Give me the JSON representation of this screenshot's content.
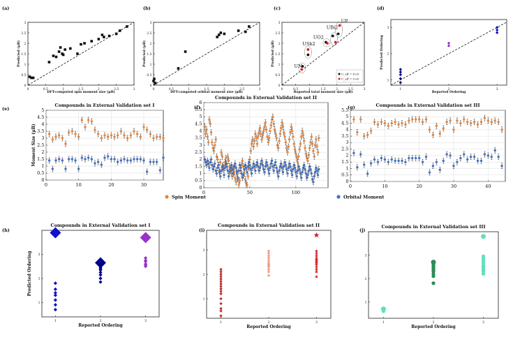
{
  "figure": {
    "legend": {
      "spin": "Spin Moment",
      "orbital": "Orbital Moment"
    },
    "colors": {
      "spin": "#E8853A",
      "orbital": "#4472C4",
      "black": "#111111",
      "red": "#D62020",
      "teal": "#2E8B57",
      "salmon": "#E9967A",
      "aqua": "#5FE0C0",
      "purple": "#9932CC",
      "blue": "#1010D0",
      "navy": "#00008B"
    }
  },
  "chart_data": [
    {
      "id": "a",
      "panel_label": "(a)",
      "type": "scatter",
      "title": "",
      "xlabel": "DFT-computed spin moment size (μB)",
      "ylabel": "Predicted (μB)",
      "xlim": [
        0,
        3
      ],
      "ylim": [
        0,
        3
      ],
      "xticks": [
        "0",
        "0.5",
        "1",
        "1.5",
        "2",
        "2.5",
        "3"
      ],
      "yticks": [
        "0",
        "0.5",
        "1",
        "1.5",
        "2",
        "2.5",
        "3"
      ],
      "diagonal": true,
      "x": [
        0.05,
        0.1,
        0.15,
        0.6,
        0.72,
        0.8,
        0.88,
        0.92,
        0.97,
        1.0,
        1.05,
        1.2,
        1.4,
        1.5,
        1.6,
        1.8,
        2.0,
        2.1,
        2.15,
        2.3,
        2.5,
        2.6,
        2.8
      ],
      "y": [
        0.4,
        0.35,
        0.35,
        1.1,
        1.4,
        1.35,
        1.6,
        1.8,
        1.5,
        1.45,
        1.7,
        1.75,
        1.5,
        1.95,
        2.0,
        2.1,
        2.2,
        2.4,
        2.3,
        2.35,
        2.45,
        2.6,
        2.8
      ]
    },
    {
      "id": "b",
      "panel_label": "(b)",
      "type": "scatter",
      "title": "",
      "xlabel": "DFT-computed orbital moment size (μB)",
      "ylabel": "Predicted (μB)",
      "xlim": [
        0,
        3
      ],
      "ylim": [
        0,
        3
      ],
      "xticks": [
        "0",
        "0.5",
        "1",
        "1.5",
        "2",
        "2.5",
        "3"
      ],
      "yticks": [
        "0",
        "0.5",
        "1",
        "1.5",
        "2",
        "2.5",
        "3"
      ],
      "diagonal": true,
      "x": [
        0.0,
        0.02,
        0.05,
        0.7,
        0.9,
        1.8,
        1.85,
        1.9,
        2.0,
        2.4,
        2.6,
        2.7
      ],
      "y": [
        0.2,
        0.3,
        0.1,
        0.8,
        1.6,
        2.3,
        2.4,
        2.5,
        2.45,
        2.6,
        2.55,
        2.8
      ]
    },
    {
      "id": "c",
      "panel_label": "(c)",
      "type": "scatter",
      "title": "",
      "xlabel": "Reported total moment size (μB)",
      "ylabel": "Predicted (μB)",
      "xlim": [
        0,
        3
      ],
      "ylim": [
        0,
        3
      ],
      "xticks": [
        "0",
        "0.5",
        "1",
        "1.5",
        "2",
        "2.5",
        "3"
      ],
      "yticks": [
        "0",
        "0.5",
        "1",
        "1.5",
        "2",
        "2.5",
        "3"
      ],
      "diagonal": true,
      "series": [
        {
          "name": "U4",
          "x": [
            0.75,
            0.95,
            1.6,
            1.85,
            2.05
          ],
          "y": [
            0.9,
            1.45,
            2.05,
            2.35,
            2.45
          ]
        },
        {
          "name": "U0",
          "x": [
            0.72,
            0.95,
            1.65,
            1.95,
            2.1
          ],
          "y": [
            0.75,
            1.7,
            2.0,
            2.05,
            2.85
          ]
        }
      ],
      "annotations": [
        "UN",
        "USb2",
        "UO2",
        "UBi2",
        "UP"
      ],
      "legend_u4": "U_eff = 4 eV",
      "legend_u0": "U_eff = 0 eV"
    },
    {
      "id": "d",
      "panel_label": "(d)",
      "type": "scatter",
      "title": "",
      "xlabel": "Reported Ordering",
      "ylabel": "Predicted Ordering",
      "xlim": [
        0.8,
        3.2
      ],
      "ylim": [
        0.8,
        3.3
      ],
      "xticks": [
        "1",
        "2",
        "3"
      ],
      "yticks": [
        "1",
        "2",
        "3"
      ],
      "diagonal": true,
      "x": [
        1,
        1,
        1,
        1,
        1,
        2,
        2,
        3,
        3,
        3
      ],
      "y": [
        0.9,
        1.05,
        1.2,
        1.3,
        1.4,
        2.3,
        2.4,
        2.8,
        2.9,
        3.0
      ]
    },
    {
      "id": "e",
      "panel_label": "(e)",
      "type": "scatter",
      "title": "Compounds in External Validation set I",
      "xlabel": "",
      "ylabel": "Moment Size (μB)",
      "xlim": [
        0,
        36
      ],
      "ylim": [
        0,
        5
      ],
      "xticks": [
        "0",
        "10",
        "20",
        "30"
      ],
      "yticks": [
        "0",
        "0.5",
        "1",
        "1.5",
        "2",
        "2.5",
        "3",
        "3.5",
        "4",
        "4.5",
        "5"
      ],
      "series": [
        {
          "name": "spin",
          "values": [
            3.3,
            2.9,
            3.1,
            3.2,
            3.0,
            2.6,
            3.4,
            3.5,
            3.3,
            3.1,
            4.3,
            3.8,
            4.3,
            4.2,
            3.6,
            3.3,
            3.0,
            3.2,
            3.1,
            3.2,
            3.1,
            3.2,
            3.5,
            3.2,
            3.0,
            3.2,
            3.5,
            3.3,
            3.1,
            3.8,
            3.6,
            3.3,
            3.0,
            3.1,
            3.1,
            3.0
          ]
        },
        {
          "name": "orbital",
          "values": [
            1.4,
            0.8,
            1.4,
            1.5,
            1.4,
            0.8,
            1.5,
            1.5,
            1.4,
            0.8,
            1.6,
            1.5,
            1.6,
            1.5,
            1.2,
            1.3,
            1.1,
            1.6,
            1.7,
            1.5,
            1.5,
            1.3,
            1.4,
            1.5,
            1.4,
            1.4,
            1.5,
            1.5,
            1.5,
            1.4,
            0.6,
            1.3,
            1.3,
            1.3,
            0.7,
            1.6
          ]
        }
      ]
    },
    {
      "id": "f",
      "panel_label": "(f)",
      "type": "scatter",
      "title": "Compounds in External Validation set II",
      "xlabel": "",
      "ylabel": "",
      "xlim": [
        0,
        135
      ],
      "ylim": [
        0,
        6
      ],
      "xticks": [
        "0",
        "50",
        "100"
      ],
      "yticks": [
        "0",
        "0.5",
        "1",
        "1.5",
        "2",
        "2.5",
        "3",
        "3.5",
        "4",
        "4.5",
        "5",
        "5.5",
        "6"
      ],
      "series": [
        {
          "name": "spin",
          "values": [
            4.3,
            3.8,
            4.1,
            3.6,
            3.2,
            4.8,
            4.5,
            3.9,
            3.2,
            2.8,
            2.6,
            3.0,
            3.4,
            2.2,
            2.0,
            1.6,
            1.2,
            1.8,
            2.5,
            2.2,
            1.6,
            1.4,
            1.8,
            2.1,
            1.7,
            2.2,
            1.9,
            1.5,
            1.2,
            1.0,
            0.8,
            1.4,
            1.1,
            0.7,
            0.4,
            1.0,
            0.6,
            0.2,
            0.5,
            1.2,
            1.6,
            1.9,
            1.5,
            1.0,
            0.6,
            0.3,
            0.2,
            0.8,
            1.4,
            2.0,
            2.6,
            3.1,
            3.4,
            2.9,
            3.3,
            3.8,
            3.5,
            3.1,
            3.6,
            3.9,
            4.2,
            3.8,
            3.4,
            3.7,
            4.0,
            4.3,
            4.6,
            4.1,
            3.6,
            3.2,
            3.5,
            4.0,
            4.4,
            4.8,
            5.0,
            4.5,
            4.1,
            3.8,
            3.5,
            3.0,
            2.8,
            3.3,
            3.8,
            4.2,
            4.6,
            4.3,
            3.9,
            3.6,
            3.2,
            2.8,
            2.5,
            2.9,
            3.4,
            3.9,
            4.3,
            4.0,
            3.6,
            3.1,
            2.7,
            2.4,
            2.1,
            1.8,
            2.2,
            2.7,
            3.1,
            3.6,
            4.0,
            3.7,
            3.3,
            2.8,
            2.4,
            2.1,
            1.9,
            2.3,
            2.8,
            3.2,
            3.6,
            3.1,
            2.6,
            2.2,
            3.0,
            3.4,
            2.9,
            2.5,
            3.5
          ]
        },
        {
          "name": "orbital",
          "values": [
            2.0,
            1.8,
            1.6,
            1.9,
            1.7,
            1.4,
            1.8,
            2.0,
            1.6,
            1.3,
            1.5,
            1.7,
            1.2,
            1.0,
            1.4,
            1.6,
            1.1,
            0.8,
            1.2,
            1.5,
            1.3,
            0.9,
            1.4,
            1.7,
            1.5,
            1.2,
            0.8,
            1.1,
            1.4,
            1.6,
            1.3,
            1.0,
            1.5,
            1.7,
            1.4,
            1.1,
            0.7,
            1.2,
            1.6,
            1.4,
            1.0,
            0.7,
            0.9,
            1.3,
            1.6,
            1.4,
            1.1,
            1.5,
            1.8,
            1.6,
            1.3,
            1.0,
            1.4,
            1.7,
            1.5,
            1.2,
            1.6,
            1.8,
            1.5,
            1.2,
            1.4,
            1.7,
            1.9,
            1.6,
            1.3,
            1.1,
            1.5,
            1.8,
            1.6,
            1.3,
            1.0,
            1.4,
            1.7,
            1.9,
            1.5,
            1.2,
            1.6,
            1.8,
            1.4,
            1.1,
            0.8,
            1.2,
            1.5,
            1.7,
            1.4,
            1.1,
            1.5,
            1.8,
            1.6,
            1.3,
            1.0,
            1.4,
            1.7,
            1.5,
            1.2,
            0.9,
            1.3,
            1.6,
            1.4,
            1.1,
            0.8,
            1.2,
            1.5,
            1.3,
            1.0,
            0.7,
            1.1,
            1.4,
            1.6,
            1.3,
            1.0,
            0.7,
            0.9,
            1.2,
            1.5,
            1.3,
            1.0,
            0.6,
            0.4,
            0.8,
            1.1,
            1.4,
            1.2,
            0.9,
            1.3
          ]
        }
      ]
    },
    {
      "id": "g",
      "panel_label": "(g)",
      "type": "scatter",
      "title": "Compounds in External Validation set III",
      "xlabel": "",
      "ylabel": "",
      "xlim": [
        0,
        45
      ],
      "ylim": [
        0,
        5.5
      ],
      "xticks": [
        "0",
        "10",
        "20",
        "30",
        "40"
      ],
      "yticks": [
        "0",
        "0.5",
        "1",
        "1.5",
        "2",
        "2.5",
        "3",
        "3.5",
        "4",
        "4.5",
        "5",
        "5.5"
      ],
      "series": [
        {
          "name": "spin",
          "values": [
            4.8,
            3.8,
            4.8,
            3.5,
            3.6,
            3.9,
            4.6,
            4.4,
            4.6,
            4.5,
            4.3,
            4.5,
            4.6,
            4.4,
            4.5,
            4.4,
            4.7,
            4.8,
            4.8,
            4.8,
            4.6,
            4.8,
            4.0,
            3.6,
            4.3,
            3.7,
            4.1,
            4.6,
            4.7,
            4.0,
            4.7,
            4.5,
            4.8,
            4.6,
            4.5,
            4.6,
            4.4,
            4.6,
            4.9,
            4.7,
            4.6,
            4.7,
            4.6,
            4.0
          ]
        },
        {
          "name": "orbital",
          "values": [
            2.2,
            1.1,
            2.1,
            1.3,
            0.6,
            1.4,
            1.7,
            1.5,
            1.8,
            1.7,
            1.5,
            1.7,
            1.6,
            1.6,
            1.6,
            1.5,
            1.8,
            1.8,
            1.8,
            1.8,
            1.5,
            1.9,
            0.7,
            1.2,
            1.5,
            0.9,
            1.6,
            2.1,
            2.0,
            1.2,
            1.5,
            1.8,
            2.1,
            1.7,
            1.9,
            1.9,
            1.6,
            1.6,
            2.1,
            2.0,
            1.9,
            2.4,
            1.9,
            1.2
          ]
        }
      ]
    },
    {
      "id": "h",
      "panel_label": "(h)",
      "type": "scatter",
      "title": "Compounds in External Validation set I",
      "xlabel": "Reported Ordering",
      "ylabel": "Predicted Ordering",
      "xlim": [
        0.7,
        3.3
      ],
      "ylim": [
        0.4,
        4.0
      ],
      "xticks": [
        "1",
        "2",
        "3"
      ],
      "yticks": [
        "1",
        "2",
        "3"
      ],
      "x": [
        1,
        1,
        1,
        1,
        1,
        1,
        1,
        1,
        2,
        2,
        2,
        2,
        2,
        2,
        2,
        2,
        2,
        2,
        2,
        3,
        3,
        3,
        3,
        3,
        3,
        3
      ],
      "y": [
        3.9,
        1.8,
        1.55,
        1.4,
        1.3,
        1.1,
        0.9,
        0.7,
        2.65,
        2.55,
        2.45,
        2.35,
        2.25,
        2.15,
        2.6,
        2.5,
        2.4,
        2.0,
        1.85,
        3.7,
        2.85,
        2.75,
        2.7,
        2.6,
        2.55,
        2.5
      ]
    },
    {
      "id": "i",
      "panel_label": "(i)",
      "type": "scatter",
      "title": "Compounds in External Validation set II",
      "xlabel": "Reported Ordering",
      "ylabel": "",
      "xlim": [
        0.7,
        3.3
      ],
      "ylim": [
        0.2,
        3.8
      ],
      "xticks": [
        "1",
        "2",
        "3"
      ],
      "yticks": [
        "1",
        "2",
        "3"
      ],
      "x": [
        1,
        1,
        1,
        1,
        1,
        1,
        1,
        1,
        1,
        1,
        1,
        1,
        1,
        1,
        1,
        1,
        2,
        2,
        2,
        2,
        2,
        2,
        2,
        2,
        2,
        2,
        2,
        2,
        3,
        3,
        3,
        3,
        3,
        3,
        3,
        3,
        3,
        3,
        3,
        3,
        3,
        3
      ],
      "y": [
        2.2,
        2.1,
        2.0,
        1.9,
        1.8,
        1.7,
        1.6,
        1.5,
        1.4,
        1.3,
        1.2,
        1.0,
        0.8,
        0.6,
        0.5,
        0.3,
        2.95,
        2.85,
        2.75,
        2.65,
        2.55,
        2.45,
        2.4,
        2.35,
        2.3,
        2.2,
        2.1,
        1.95,
        3.6,
        2.95,
        2.85,
        2.75,
        2.65,
        2.6,
        2.55,
        2.5,
        2.45,
        2.4,
        2.3,
        2.2,
        2.1,
        1.9
      ]
    },
    {
      "id": "j",
      "panel_label": "(j)",
      "type": "scatter",
      "title": "Compounds in External Validation set III",
      "xlabel": "Reported Ordering",
      "ylabel": "",
      "xlim": [
        0.7,
        3.3
      ],
      "ylim": [
        0.3,
        4.0
      ],
      "xticks": [
        "1",
        "2",
        "3"
      ],
      "yticks": [
        "1",
        "2",
        "3"
      ],
      "x": [
        1,
        1,
        2,
        2,
        2,
        2,
        2,
        2,
        2,
        2,
        2,
        2,
        2,
        2,
        3,
        3,
        3,
        3,
        3,
        3,
        3,
        3,
        3,
        3,
        3,
        3
      ],
      "y": [
        0.7,
        0.6,
        2.7,
        2.65,
        2.6,
        2.55,
        2.5,
        2.45,
        2.4,
        2.35,
        2.3,
        2.2,
        2.1,
        1.8,
        3.8,
        2.95,
        2.85,
        2.75,
        2.65,
        2.55,
        2.5,
        2.45,
        2.4,
        2.35,
        2.3,
        2.2
      ]
    }
  ]
}
